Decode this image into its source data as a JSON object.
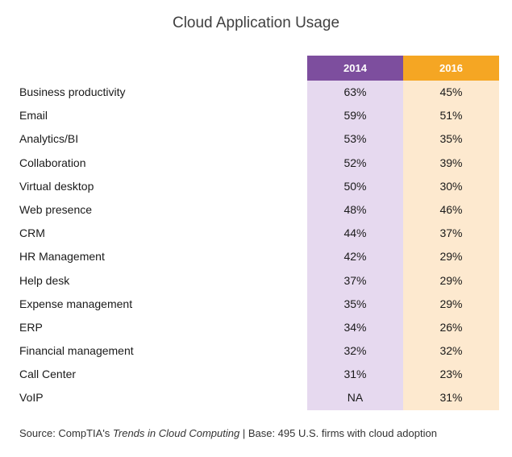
{
  "chart_data": {
    "type": "table",
    "title": "Cloud Application Usage",
    "columns": [
      "2014",
      "2016"
    ],
    "rows": [
      {
        "label": "Business productivity",
        "2014": "63%",
        "2016": "45%"
      },
      {
        "label": "Email",
        "2014": "59%",
        "2016": "51%"
      },
      {
        "label": "Analytics/BI",
        "2014": "53%",
        "2016": "35%"
      },
      {
        "label": "Collaboration",
        "2014": "52%",
        "2016": "39%"
      },
      {
        "label": "Virtual desktop",
        "2014": "50%",
        "2016": "30%"
      },
      {
        "label": "Web presence",
        "2014": "48%",
        "2016": "46%"
      },
      {
        "label": "CRM",
        "2014": "44%",
        "2016": "37%"
      },
      {
        "label": "HR Management",
        "2014": "42%",
        "2016": "29%"
      },
      {
        "label": "Help desk",
        "2014": "37%",
        "2016": "29%"
      },
      {
        "label": "Expense management",
        "2014": "35%",
        "2016": "29%"
      },
      {
        "label": "ERP",
        "2014": "34%",
        "2016": "26%"
      },
      {
        "label": "Financial management",
        "2014": "32%",
        "2016": "32%"
      },
      {
        "label": "Call Center",
        "2014": "31%",
        "2016": "23%"
      },
      {
        "label": "VoIP",
        "2014": "NA",
        "2016": "31%"
      }
    ],
    "colors": {
      "header_2014": "#7d4e9e",
      "header_2016": "#f5a623",
      "column_2014": "#e6d9ef",
      "column_2016": "#fde9cf"
    }
  },
  "source": {
    "prefix": "Source: CompTIA's ",
    "report": "Trends in Cloud Computing",
    "suffix": " | Base: 495 U.S. firms with cloud adoption"
  }
}
